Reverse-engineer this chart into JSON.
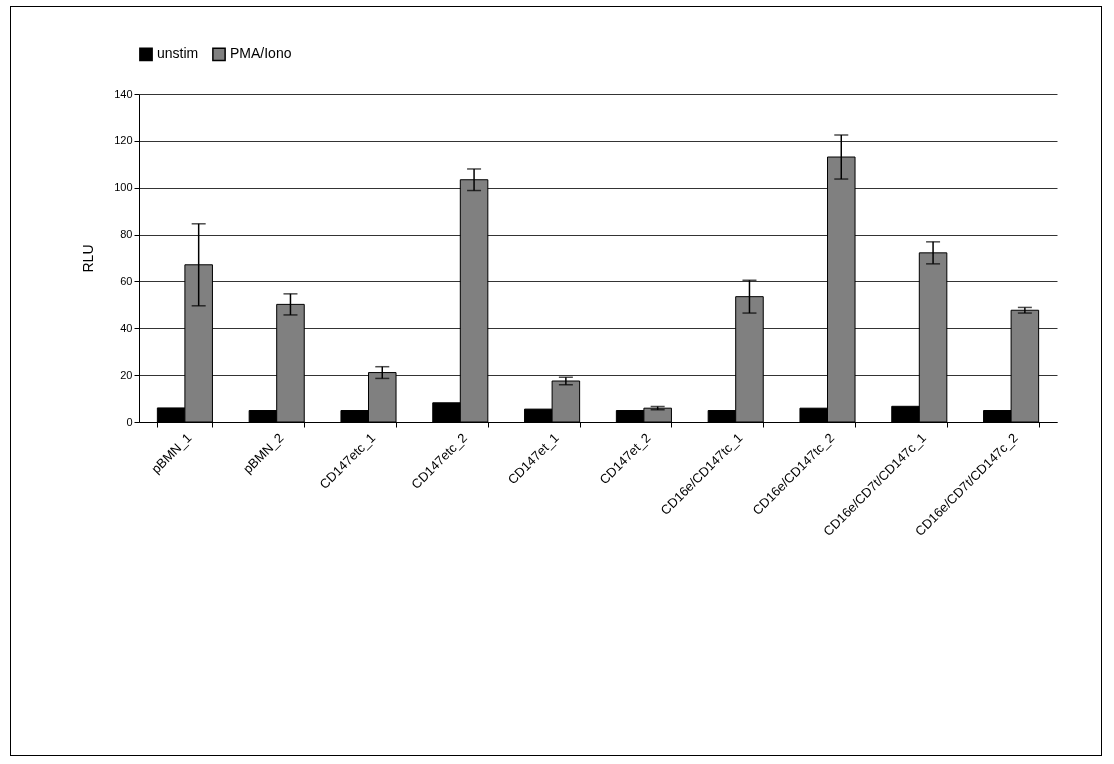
{
  "chart_data": {
    "type": "bar",
    "ylabel": "RLU",
    "categories": [
      "pBMN_1",
      "pBMN_2",
      "CD147etc_1",
      "CD147etc_2",
      "CD147et_1",
      "CD147et_2",
      "CD16e/CD147tc_1",
      "CD16e/CD147tc_2",
      "CD16e/CD7t/CD147c_1",
      "CD16e/CD7t/CD147c_2"
    ],
    "series": [
      {
        "name": "unstim",
        "color": "#000000",
        "values": [
          6,
          4.9,
          4.9,
          8.2,
          5.5,
          4.9,
          4.9,
          5.9,
          6.7,
          4.9
        ]
      },
      {
        "name": "PMA/Iono",
        "color": "#808080",
        "values": [
          67.1,
          50.2,
          21.1,
          103.4,
          17.5,
          5.9,
          53.5,
          113.1,
          72.2,
          47.7
        ],
        "errors": [
          17.5,
          4.5,
          2.5,
          4.6,
          1.6,
          0.7,
          7,
          9.4,
          4.7,
          1.2
        ]
      }
    ],
    "ylim": [
      0,
      140
    ],
    "yticks": [
      0,
      20,
      40,
      60,
      80,
      100,
      120,
      140
    ],
    "grid": "y",
    "legend": "top"
  }
}
